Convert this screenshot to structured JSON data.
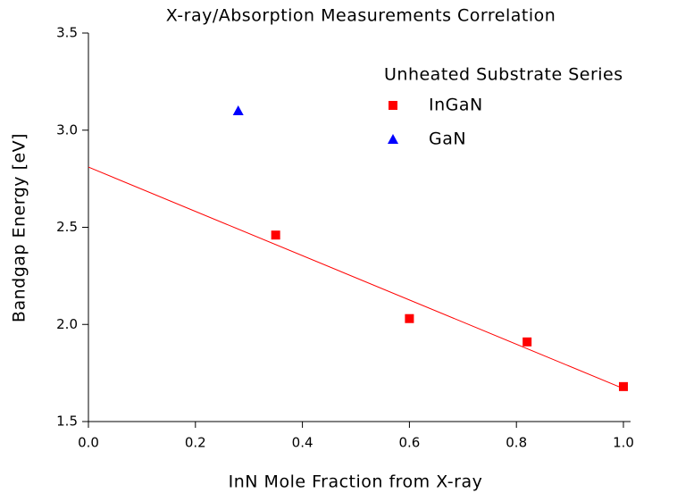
{
  "chart_data": {
    "type": "scatter",
    "title": "X-ray/Absorption Measurements Correlation",
    "x_label": "InN Mole Fraction from X-ray",
    "y_label": "Bandgap Energy [eV]",
    "legend_title": "Unheated Substrate Series",
    "legend": "top-right",
    "series": [
      {
        "name": "InGaN",
        "color": "#ff0000",
        "marker": "square",
        "x": [
          0.35,
          0.6,
          0.82,
          1.0
        ],
        "values": [
          2.46,
          2.03,
          1.91,
          1.68
        ]
      },
      {
        "name": "GaN",
        "color": "#0000ff",
        "marker": "triangle",
        "x": [
          0.28
        ],
        "values": [
          3.1
        ]
      }
    ],
    "fit": {
      "color": "#ff0000",
      "x": [
        0,
        1.0
      ],
      "values": [
        2.81,
        1.67
      ]
    },
    "xlim": [
      0,
      1.0
    ],
    "ylim": [
      1.5,
      3.5
    ],
    "xticks": [
      {
        "value": 0,
        "label": "0.0"
      },
      0.2,
      0.4,
      0.6,
      0.8,
      {
        "value": 1.0,
        "label": "1.0"
      }
    ],
    "yticks": [
      1.5,
      {
        "value": 2.0,
        "label": "2.0"
      },
      2.5,
      {
        "value": 3.0,
        "label": "3.0"
      },
      3.5
    ]
  }
}
